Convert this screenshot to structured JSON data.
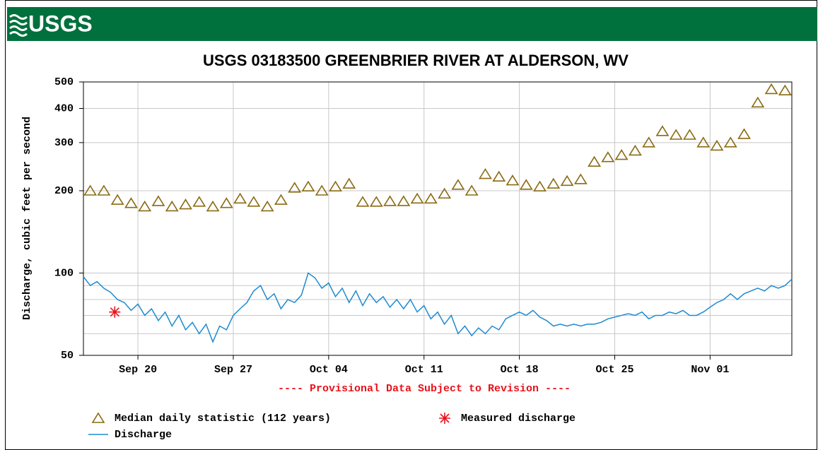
{
  "header": {
    "logo": "USGS"
  },
  "chart_data": {
    "type": "line",
    "title": "USGS 03183500 GREENBRIER RIVER AT ALDERSON, WV",
    "y_label": "Discharge, cubic feet per second",
    "note": "---- Provisional Data Subject to Revision ----",
    "log_y": true,
    "grid": true,
    "xlim": [
      0,
      52
    ],
    "xticks": [
      {
        "value": 4,
        "label": "Sep 20"
      },
      {
        "value": 11,
        "label": "Sep 27"
      },
      {
        "value": 18,
        "label": "Oct 04"
      },
      {
        "value": 25,
        "label": "Oct 11"
      },
      {
        "value": 32,
        "label": "Oct 18"
      },
      {
        "value": 39,
        "label": "Oct 25"
      },
      {
        "value": 46,
        "label": "Nov 01"
      }
    ],
    "ylim": [
      50,
      500
    ],
    "yticks": [
      50,
      100,
      200,
      300,
      400,
      500
    ],
    "minor_yticks": [
      60,
      70,
      80,
      90
    ],
    "series": [
      {
        "name": "Median daily statistic (112 years)",
        "style": "triangle",
        "color": "#8a6a12",
        "x": [
          0.5,
          1.5,
          2.5,
          3.5,
          4.5,
          5.5,
          6.5,
          7.5,
          8.5,
          9.5,
          10.5,
          11.5,
          12.5,
          13.5,
          14.5,
          15.5,
          16.5,
          17.5,
          18.5,
          19.5,
          20.5,
          21.5,
          22.5,
          23.5,
          24.5,
          25.5,
          26.5,
          27.5,
          28.5,
          29.5,
          30.5,
          31.5,
          32.5,
          33.5,
          34.5,
          35.5,
          36.5,
          37.5,
          38.5,
          39.5,
          40.5,
          41.5,
          42.5,
          43.5,
          44.5,
          45.5,
          46.5,
          47.5,
          48.5,
          49.5,
          50.5,
          51.5
        ],
        "values": [
          200,
          200,
          185,
          180,
          175,
          183,
          175,
          178,
          182,
          175,
          180,
          187,
          182,
          175,
          185,
          205,
          207,
          200,
          207,
          212,
          182,
          182,
          183,
          183,
          187,
          187,
          195,
          210,
          200,
          230,
          225,
          218,
          210,
          207,
          212,
          217,
          220,
          255,
          265,
          270,
          280,
          300,
          330,
          320,
          320,
          300,
          292,
          300,
          322,
          420,
          470,
          465
        ]
      },
      {
        "name": "Measured discharge",
        "style": "asterisk",
        "color": "#e8121b",
        "x": [
          2.3
        ],
        "values": [
          72
        ]
      },
      {
        "name": "Discharge",
        "style": "line",
        "color": "#1e8bd0",
        "x": [
          0,
          0.5,
          1,
          1.5,
          2,
          2.5,
          3,
          3.5,
          4,
          4.5,
          5,
          5.5,
          6,
          6.5,
          7,
          7.5,
          8,
          8.5,
          9,
          9.5,
          10,
          10.5,
          11,
          11.5,
          12,
          12.5,
          13,
          13.5,
          14,
          14.5,
          15,
          15.5,
          16,
          16.5,
          17,
          17.5,
          18,
          18.5,
          19,
          19.5,
          20,
          20.5,
          21,
          21.5,
          22,
          22.5,
          23,
          23.5,
          24,
          24.5,
          25,
          25.5,
          26,
          26.5,
          27,
          27.5,
          28,
          28.5,
          29,
          29.5,
          30,
          30.5,
          31,
          31.5,
          32,
          32.5,
          33,
          33.5,
          34,
          34.5,
          35,
          35.5,
          36,
          36.5,
          37,
          37.5,
          38,
          38.5,
          39,
          39.5,
          40,
          40.5,
          41,
          41.5,
          42,
          42.5,
          43,
          43.5,
          44,
          44.5,
          45,
          45.5,
          46,
          46.5,
          47,
          47.5,
          48,
          48.5,
          49,
          49.5,
          50,
          50.5,
          51,
          51.5,
          52
        ],
        "values": [
          97,
          90,
          93,
          88,
          85,
          80,
          78,
          73,
          77,
          70,
          74,
          67,
          72,
          64,
          70,
          62,
          66,
          60,
          65,
          56,
          64,
          62,
          70,
          74,
          78,
          86,
          90,
          80,
          84,
          74,
          80,
          78,
          83,
          100,
          96,
          88,
          92,
          82,
          88,
          78,
          86,
          76,
          84,
          78,
          82,
          75,
          80,
          74,
          80,
          72,
          76,
          68,
          72,
          65,
          70,
          60,
          64,
          59,
          63,
          60,
          64,
          62,
          68,
          70,
          72,
          70,
          73,
          69,
          67,
          64,
          65,
          64,
          65,
          64,
          65,
          65,
          66,
          68,
          69,
          70,
          71,
          70,
          72,
          68,
          70,
          70,
          72,
          71,
          73,
          70,
          70,
          72,
          75,
          78,
          80,
          84,
          80,
          84,
          86,
          88,
          86,
          90,
          88,
          90,
          95
        ]
      }
    ]
  }
}
